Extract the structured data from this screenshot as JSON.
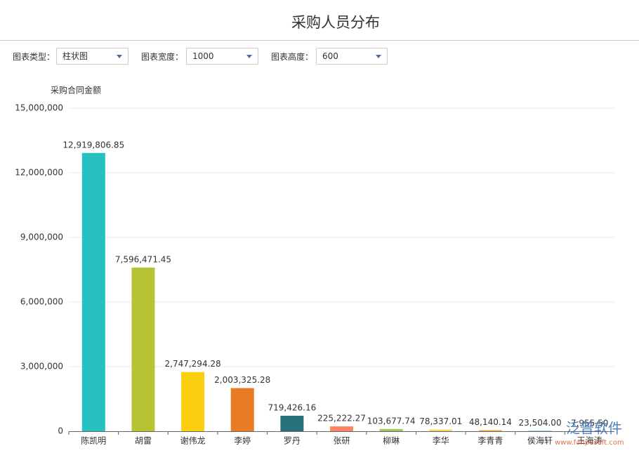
{
  "header": {
    "title": "采购人员分布"
  },
  "controls": [
    {
      "label": "图表类型：",
      "value": "柱状图"
    },
    {
      "label": "图表宽度：",
      "value": "1000"
    },
    {
      "label": "图表高度：",
      "value": "600"
    }
  ],
  "chart_data": {
    "type": "bar",
    "y_label": "采购合同金额",
    "categories": [
      "陈凯明",
      "胡雷",
      "谢伟龙",
      "李婷",
      "罗丹",
      "张研",
      "柳琳",
      "李华",
      "李青青",
      "侯海轩",
      "王海涛"
    ],
    "values": [
      12919806.85,
      7596471.45,
      2747294.28,
      2003325.28,
      719426.16,
      225222.27,
      103677.74,
      78337.01,
      48140.14,
      23504.0,
      7955.5
    ],
    "value_labels": [
      "12,919,806.85",
      "7,596,471.45",
      "2,747,294.28",
      "2,003,325.28",
      "719,426.16",
      "225,222.27",
      "103,677.74",
      "78,337.01",
      "48,140.14",
      "23,504.00",
      "7,955.50"
    ],
    "colors": [
      "#26c0c0",
      "#b5c334",
      "#fcce10",
      "#e87c25",
      "#27727b",
      "#fe8463",
      "#9bca63",
      "#fad860",
      "#f3a43b",
      "#60c0dd",
      "#d7504b"
    ],
    "ylim": [
      0,
      15000000
    ],
    "yticks": [
      0,
      {
        "value": 3000000,
        "label": "3,000,000"
      },
      {
        "value": 6000000,
        "label": "6,000,000"
      },
      {
        "value": 9000000,
        "label": "9,000,000"
      },
      {
        "value": 12000000,
        "label": "12,000,000"
      },
      {
        "value": 15000000,
        "label": "15,000,000"
      }
    ],
    "grid": true
  },
  "watermark": {
    "brand": "泛普软件",
    "url": "www.fanpusoft.com"
  }
}
